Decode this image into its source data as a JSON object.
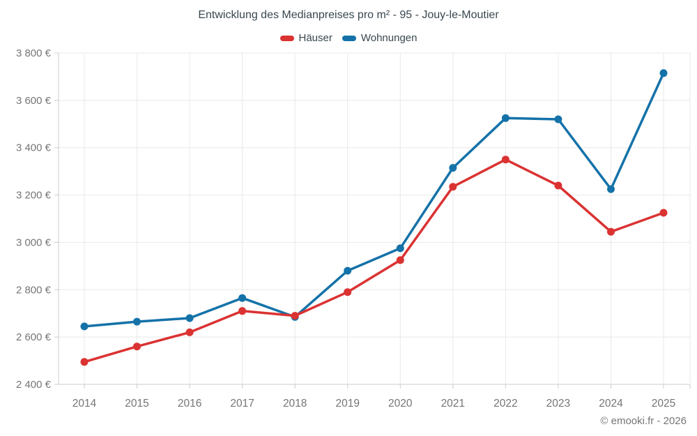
{
  "chart_data": {
    "type": "line",
    "title": "Entwicklung des Medianpreises pro m² - 95 - Jouy-le-Moutier",
    "categories": [
      "2014",
      "2015",
      "2016",
      "2017",
      "2018",
      "2019",
      "2020",
      "2021",
      "2022",
      "2023",
      "2024",
      "2025"
    ],
    "series": [
      {
        "name": "Häuser",
        "color": "#db3232",
        "values": [
          2495,
          2560,
          2620,
          2710,
          2690,
          2790,
          2925,
          3235,
          3350,
          3240,
          3045,
          3125
        ]
      },
      {
        "name": "Wohnungen",
        "color": "#1472a8",
        "values": [
          2645,
          2665,
          2680,
          2765,
          2685,
          2880,
          2975,
          3315,
          3525,
          3520,
          3225,
          3715
        ]
      }
    ],
    "xlabel": "",
    "ylabel": "",
    "ylim": [
      2400,
      3800
    ],
    "ytick_step": 200,
    "ytick_labels": [
      "2 400 €",
      "2 600 €",
      "2 800 €",
      "3 000 €",
      "3 200 €",
      "3 400 €",
      "3 600 €",
      "3 800 €"
    ],
    "grid": true,
    "legend_position": "top"
  },
  "footer": {
    "credit": "© emooki.fr - 2026"
  },
  "colors": {
    "background": "#ffffff",
    "grid": "#e8e8e8",
    "axis": "#cccccc",
    "tick_label": "#757575",
    "title_text": "#37474f",
    "haeuser_red": "#db3232",
    "wohnungen_blue": "#1472a8"
  }
}
